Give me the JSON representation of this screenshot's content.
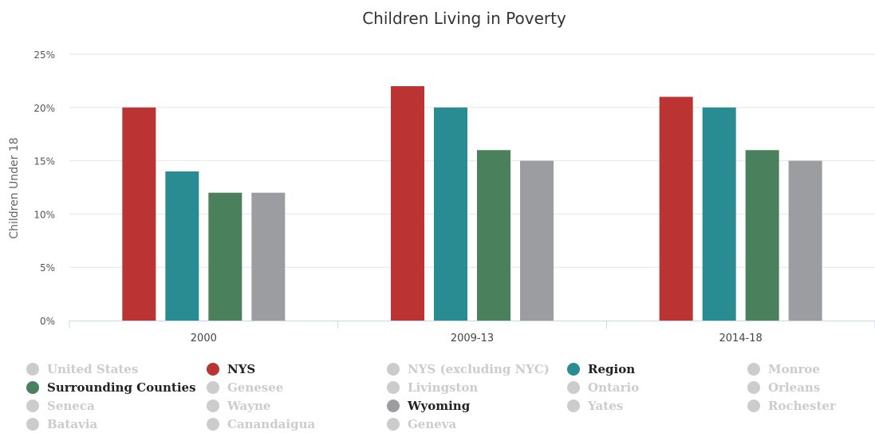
{
  "chart_data": {
    "type": "bar",
    "title": "Children Living in Poverty",
    "ylabel": "Children Under 18",
    "xlabel": "",
    "categories": [
      "2000",
      "2009-13",
      "2014-18"
    ],
    "ylim": [
      0,
      25
    ],
    "yticks": [
      "0%",
      "5%",
      "10%",
      "15%",
      "20%",
      "25%"
    ],
    "ytick_values": [
      0,
      5,
      10,
      15,
      20,
      25
    ],
    "grid": true,
    "series": [
      {
        "name": "NYS",
        "color": "#bb3333",
        "values": [
          20,
          22,
          21
        ]
      },
      {
        "name": "Region",
        "color": "#2a8c93",
        "values": [
          14,
          20,
          20
        ]
      },
      {
        "name": "Surrounding Counties",
        "color": "#4a805c",
        "values": [
          12,
          16,
          16
        ]
      },
      {
        "name": "Wyoming",
        "color": "#9b9da0",
        "values": [
          12,
          15,
          15
        ]
      }
    ]
  },
  "legend": {
    "placement": "bottom",
    "inactive_color": "#cccccc",
    "items": [
      {
        "label": "United States",
        "active": false,
        "color": "#cccccc"
      },
      {
        "label": "NYS",
        "active": true,
        "color": "#bb3333"
      },
      {
        "label": "NYS (excluding NYC)",
        "active": false,
        "color": "#cccccc"
      },
      {
        "label": "Region",
        "active": true,
        "color": "#2a8c93"
      },
      {
        "label": "Monroe",
        "active": false,
        "color": "#cccccc"
      },
      {
        "label": "Surrounding Counties",
        "active": true,
        "color": "#4a805c"
      },
      {
        "label": "Genesee",
        "active": false,
        "color": "#cccccc"
      },
      {
        "label": "Livingston",
        "active": false,
        "color": "#cccccc"
      },
      {
        "label": "Ontario",
        "active": false,
        "color": "#cccccc"
      },
      {
        "label": "Orleans",
        "active": false,
        "color": "#cccccc"
      },
      {
        "label": "Seneca",
        "active": false,
        "color": "#cccccc"
      },
      {
        "label": "Wayne",
        "active": false,
        "color": "#cccccc"
      },
      {
        "label": "Wyoming",
        "active": true,
        "color": "#9b9da0"
      },
      {
        "label": "Yates",
        "active": false,
        "color": "#cccccc"
      },
      {
        "label": "Rochester",
        "active": false,
        "color": "#cccccc"
      },
      {
        "label": "Batavia",
        "active": false,
        "color": "#cccccc"
      },
      {
        "label": "Canandaigua",
        "active": false,
        "color": "#cccccc"
      },
      {
        "label": "Geneva",
        "active": false,
        "color": "#cccccc"
      }
    ]
  }
}
